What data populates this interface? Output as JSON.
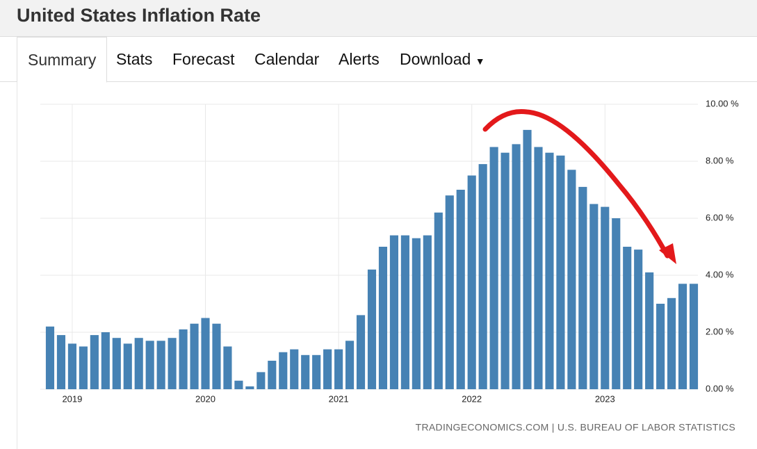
{
  "header": {
    "title": "United States Inflation Rate"
  },
  "tabs": [
    "Summary",
    "Stats",
    "Forecast",
    "Calendar",
    "Alerts",
    "Download"
  ],
  "chart_data": {
    "type": "bar",
    "categories": [
      null,
      null,
      "2019",
      null,
      null,
      null,
      null,
      null,
      null,
      null,
      null,
      null,
      null,
      null,
      "2020",
      null,
      null,
      null,
      null,
      null,
      null,
      null,
      null,
      null,
      null,
      null,
      "2021",
      null,
      null,
      null,
      null,
      null,
      null,
      null,
      null,
      null,
      null,
      null,
      "2022",
      null,
      null,
      null,
      null,
      null,
      null,
      null,
      null,
      null,
      null,
      null,
      "2023",
      null,
      null,
      null,
      null,
      null,
      null,
      null,
      null
    ],
    "values": [
      2.2,
      1.9,
      1.6,
      1.5,
      1.9,
      2.0,
      1.8,
      1.6,
      1.8,
      1.7,
      1.7,
      1.8,
      2.1,
      2.3,
      2.5,
      2.3,
      1.5,
      0.3,
      0.1,
      0.6,
      1.0,
      1.3,
      1.4,
      1.2,
      1.2,
      1.4,
      1.4,
      1.7,
      2.6,
      4.2,
      5.0,
      5.4,
      5.4,
      5.3,
      5.4,
      6.2,
      6.8,
      7.0,
      7.5,
      7.9,
      8.5,
      8.3,
      8.6,
      9.1,
      8.5,
      8.3,
      8.2,
      7.7,
      7.1,
      6.5,
      6.4,
      6.0,
      5.0,
      4.9,
      4.1,
      3.0,
      3.2,
      3.7,
      3.7
    ],
    "color": "#4682b4",
    "ylim": [
      0,
      10
    ],
    "yticks": [
      {
        "value": 0,
        "label": "0.00 %"
      },
      {
        "value": 2,
        "label": "2.00 %"
      },
      {
        "value": 4,
        "label": "4.00 %"
      },
      {
        "value": 6,
        "label": "6.00 %"
      },
      {
        "value": 8,
        "label": "8.00 %"
      },
      {
        "value": 10,
        "label": "10.00 %"
      }
    ],
    "grid": true,
    "source": "TRADINGECONOMICS.COM | U.S. BUREAU OF LABOR STATISTICS"
  }
}
